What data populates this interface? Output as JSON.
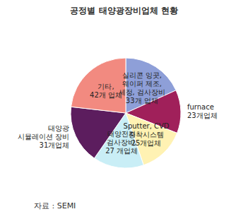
{
  "chart_data": {
    "type": "pie",
    "title": "공정별 태양광장비업체 현황",
    "categories": [
      "실리콘 잉곳,\n웨이퍼 제조,\n세정, 검사장비",
      "furnace",
      "Sputter, CVD\n증착시스템",
      "태양전지\n검사장비,",
      "태양광\n시뮬레이션 장비",
      "기타,"
    ],
    "values": [
      33,
      23,
      25,
      27,
      31,
      42
    ],
    "value_labels": [
      "33개 업체",
      "23개업체",
      "25개업체",
      "27 개업체",
      "31개업체",
      "42개 업체"
    ],
    "colors": [
      "#8e9fd8",
      "#a0205a",
      "#fff2b3",
      "#c9eef6",
      "#5c1d5e",
      "#f28a80"
    ],
    "data_labels": true,
    "annotations": [
      "자료 : SEMI"
    ]
  }
}
